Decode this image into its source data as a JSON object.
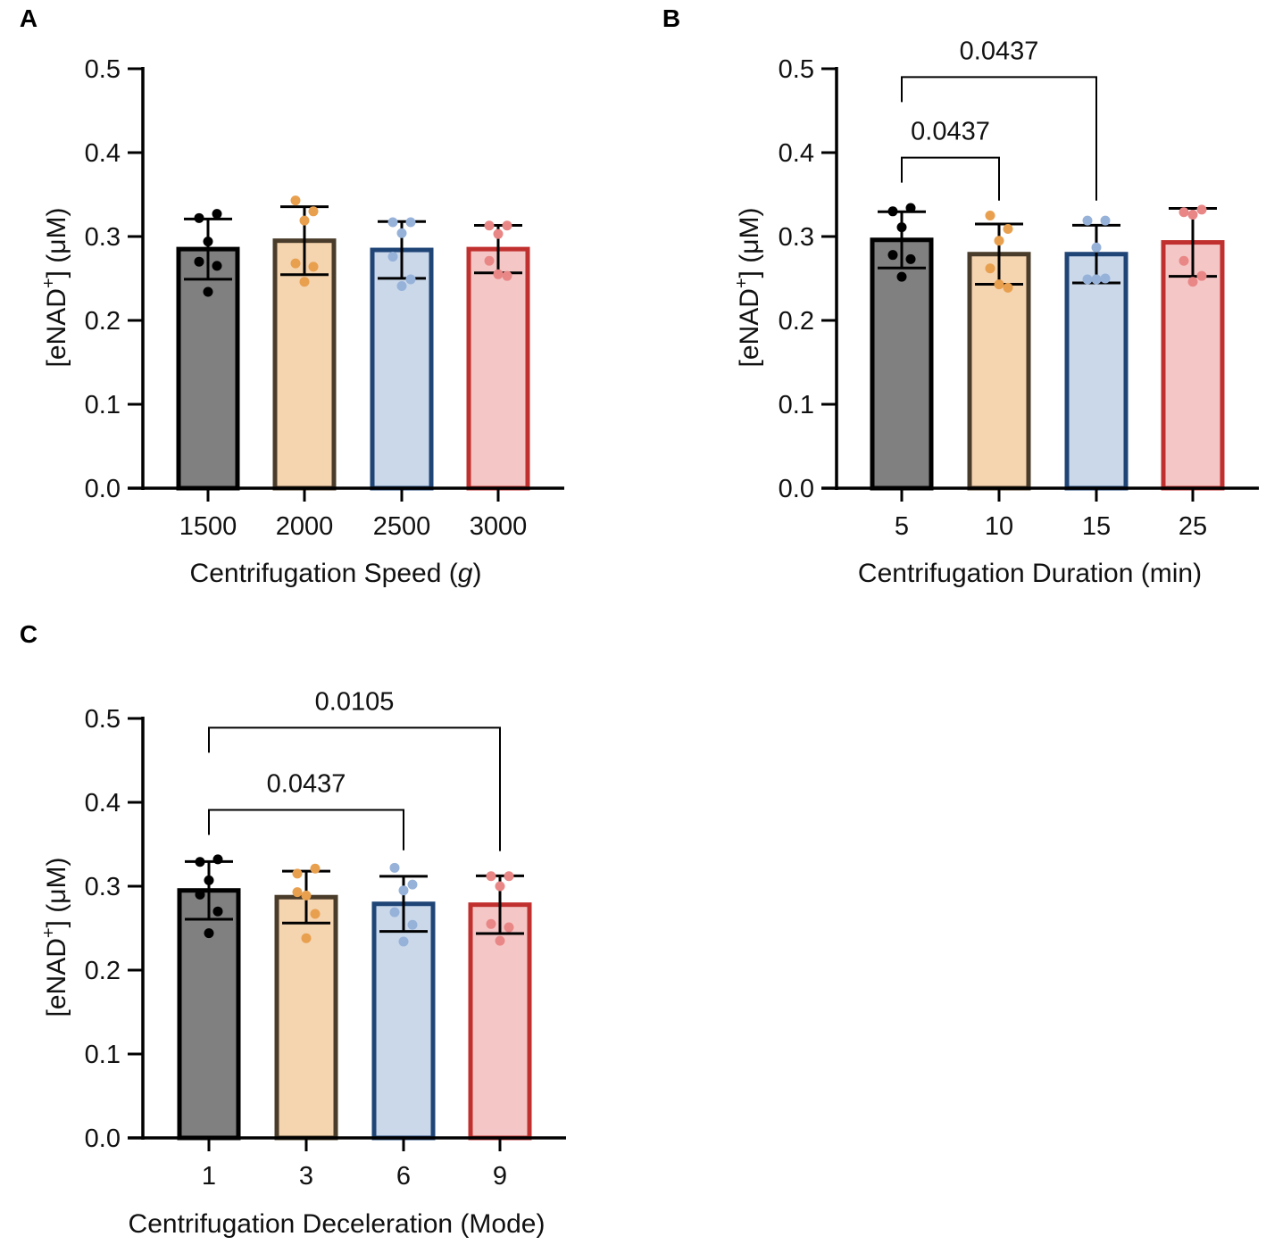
{
  "chart_data": [
    {
      "panel": "A",
      "type": "bar",
      "title": "",
      "xlabel_parts": [
        "Centrifugation Speed (",
        "g",
        ")"
      ],
      "ylabel_parts": [
        "[eNAD",
        "+",
        "] (μM)"
      ],
      "ylim": [
        0,
        0.5
      ],
      "yticks": [
        "0.0",
        "0.1",
        "0.2",
        "0.3",
        "0.4",
        "0.5"
      ],
      "categories": [
        "1500",
        "2000",
        "2500",
        "3000"
      ],
      "values": [
        0.285,
        0.295,
        0.284,
        0.285
      ],
      "points": [
        [
          0.322,
          0.327,
          0.294,
          0.27,
          0.265,
          0.234
        ],
        [
          0.343,
          0.33,
          0.319,
          0.268,
          0.264,
          0.246
        ],
        [
          0.317,
          0.317,
          0.304,
          0.276,
          0.249,
          0.241
        ],
        [
          0.313,
          0.313,
          0.303,
          0.271,
          0.253,
          0.255
        ]
      ],
      "comparisons": []
    },
    {
      "panel": "B",
      "type": "bar",
      "title": "",
      "xlabel_parts": [
        "Centrifugation Duration (min)",
        "",
        ""
      ],
      "ylabel_parts": [
        "[eNAD",
        "+",
        "] (μM)"
      ],
      "ylim": [
        0,
        0.5
      ],
      "yticks": [
        "0.0",
        "0.1",
        "0.2",
        "0.3",
        "0.4",
        "0.5"
      ],
      "categories": [
        "5",
        "10",
        "15",
        "25"
      ],
      "values": [
        0.296,
        0.279,
        0.279,
        0.293
      ],
      "points": [
        [
          0.33,
          0.334,
          0.311,
          0.278,
          0.273,
          0.252
        ],
        [
          0.325,
          0.309,
          0.295,
          0.262,
          0.239,
          0.243
        ],
        [
          0.319,
          0.319,
          0.287,
          0.249,
          0.25,
          0.249
        ],
        [
          0.329,
          0.332,
          0.326,
          0.271,
          0.253,
          0.246
        ]
      ],
      "comparisons": [
        {
          "from": 0,
          "to": 2,
          "label": "0.0437",
          "level": 0.49
        },
        {
          "from": 0,
          "to": 1,
          "label": "0.0437",
          "level": 0.394
        }
      ]
    },
    {
      "panel": "C",
      "type": "bar",
      "title": "",
      "xlabel_parts": [
        "Centrifugation Deceleration (Mode)",
        "",
        ""
      ],
      "ylabel_parts": [
        "[eNAD",
        "+",
        "] (μM)"
      ],
      "ylim": [
        0,
        0.5
      ],
      "yticks": [
        "0.0",
        "0.1",
        "0.2",
        "0.3",
        "0.4",
        "0.5"
      ],
      "categories": [
        "1",
        "3",
        "6",
        "9"
      ],
      "values": [
        0.295,
        0.287,
        0.279,
        0.278
      ],
      "points": [
        [
          0.329,
          0.332,
          0.307,
          0.29,
          0.27,
          0.244
        ],
        [
          0.315,
          0.321,
          0.289,
          0.293,
          0.267,
          0.238
        ],
        [
          0.322,
          0.302,
          0.295,
          0.269,
          0.254,
          0.234
        ],
        [
          0.312,
          0.312,
          0.3,
          0.255,
          0.251,
          0.235
        ]
      ],
      "comparisons": [
        {
          "from": 0,
          "to": 3,
          "label": "0.0105",
          "level": 0.489
        },
        {
          "from": 0,
          "to": 2,
          "label": "0.0437",
          "level": 0.391
        }
      ]
    }
  ],
  "colors": {
    "fills": [
      "#808080",
      "#f5d4b0",
      "#cad8ea",
      "#f4c7c6"
    ],
    "strokes": [
      "#000000",
      "#4a3c2a",
      "#1f4577",
      "#c0302f"
    ],
    "dots": [
      "#000000",
      "#e8a04f",
      "#97b2d9",
      "#e98787"
    ]
  }
}
